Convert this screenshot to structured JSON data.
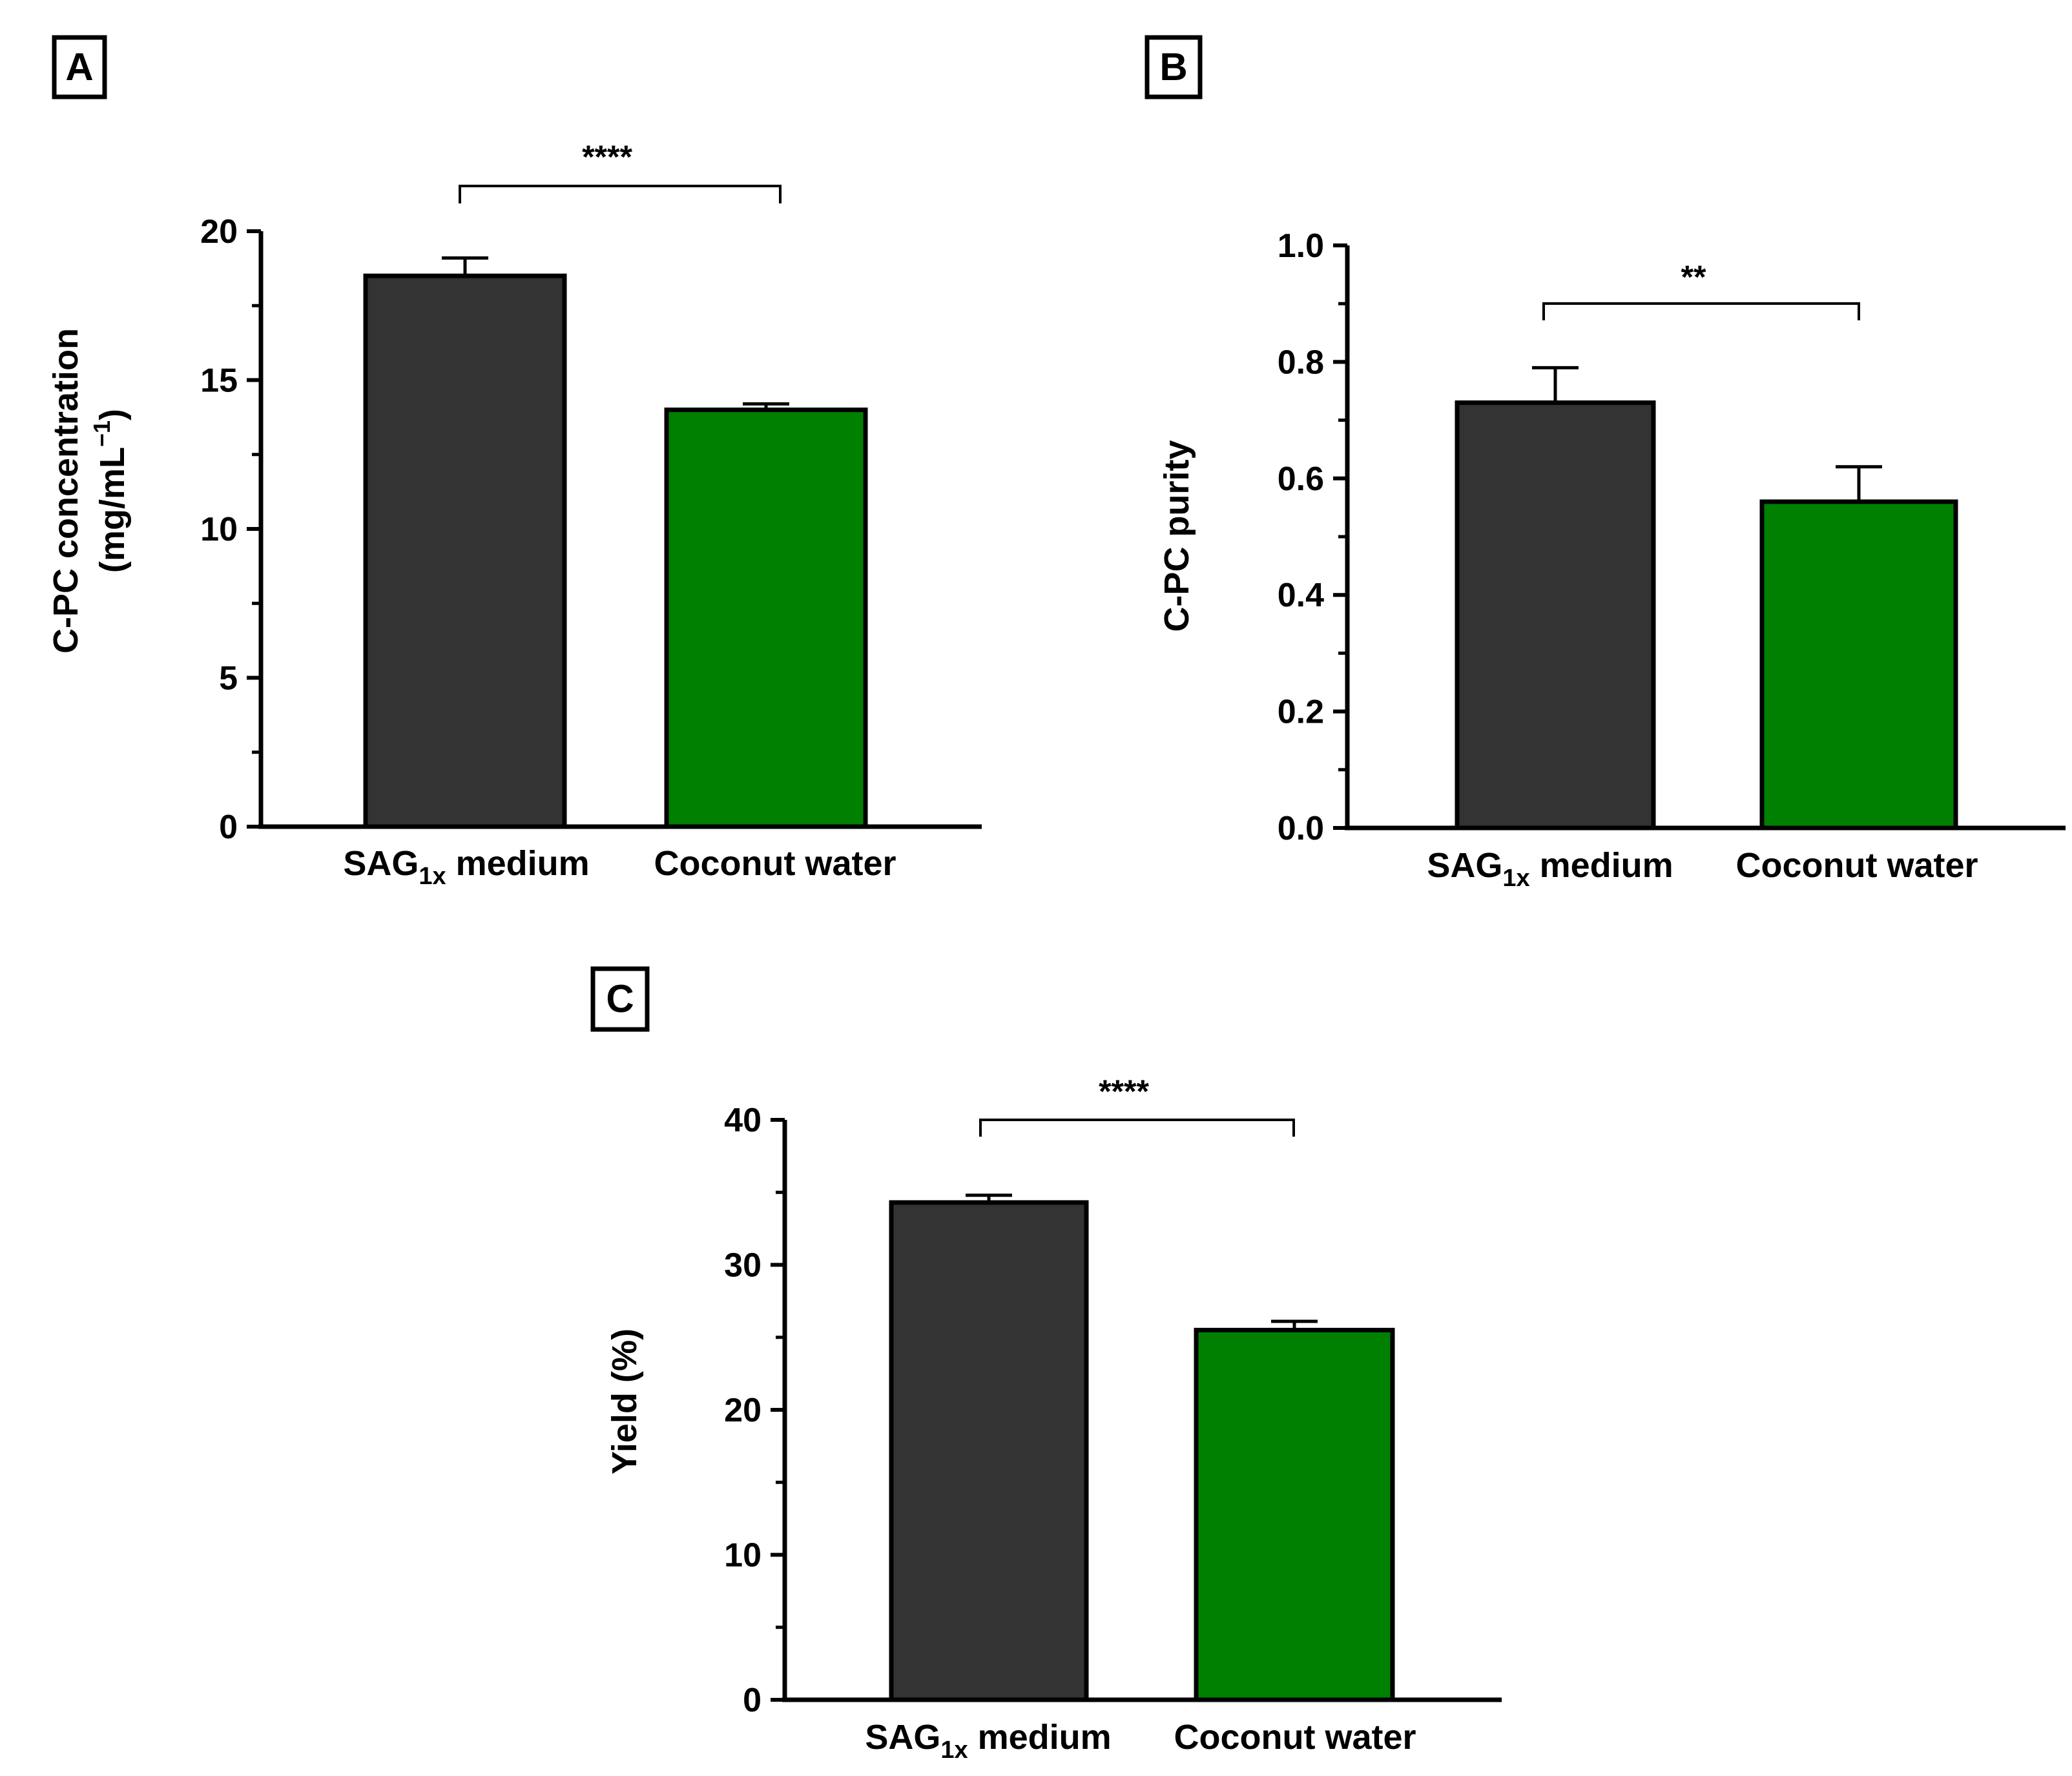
{
  "chart_data": [
    {
      "panel": "A",
      "type": "bar",
      "categories": [
        "SAG",
        "Coconut water"
      ],
      "values": [
        18.5,
        14.0
      ],
      "errors": [
        0.6,
        0.2
      ],
      "colors": [
        "#333333",
        "#008000"
      ],
      "ylabel_line1": "C-PC concentration",
      "ylabel_line2": "(mg/mL",
      "ylabel_sup": "−1",
      "ylabel_close": ")",
      "ylim": [
        0,
        20
      ],
      "yticks": [
        0,
        5,
        10,
        15,
        20
      ],
      "ytick_labels": [
        "0",
        "5",
        "10",
        "15",
        "20"
      ],
      "minor_step": 2.5,
      "significance": "****"
    },
    {
      "panel": "B",
      "type": "bar",
      "categories": [
        "SAG",
        "Coconut water"
      ],
      "values": [
        0.73,
        0.56
      ],
      "errors": [
        0.06,
        0.06
      ],
      "colors": [
        "#333333",
        "#008000"
      ],
      "ylabel": "C-PC purity",
      "ylim": [
        0,
        1.0
      ],
      "yticks": [
        0,
        0.2,
        0.4,
        0.6,
        0.8,
        1.0
      ],
      "ytick_labels": [
        "0.0",
        "0.2",
        "0.4",
        "0.6",
        "0.8",
        "1.0"
      ],
      "minor_step": 0.1,
      "significance": "**"
    },
    {
      "panel": "C",
      "type": "bar",
      "categories": [
        "SAG",
        "Coconut water"
      ],
      "values": [
        34.3,
        25.5
      ],
      "errors": [
        0.5,
        0.6
      ],
      "colors": [
        "#333333",
        "#008000"
      ],
      "ylabel": "Yield (%)",
      "ylim": [
        0,
        40
      ],
      "yticks": [
        0,
        10,
        20,
        30,
        40
      ],
      "ytick_labels": [
        "0",
        "10",
        "20",
        "30",
        "40"
      ],
      "minor_step": 5,
      "significance": "****"
    }
  ],
  "category_sub": "1x",
  "category_suffix": " medium"
}
